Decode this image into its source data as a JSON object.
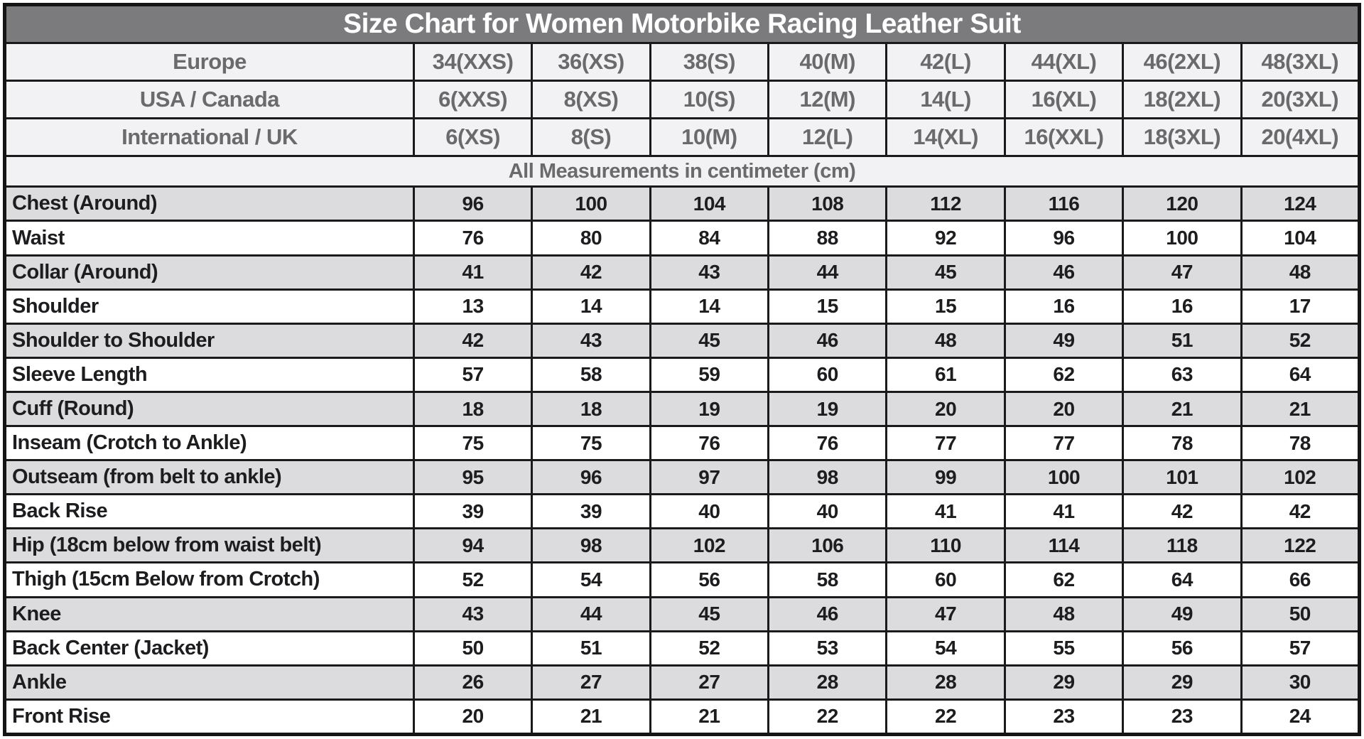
{
  "title": "Size Chart for Women Motorbike Racing Leather Suit",
  "units_note": "All Measurements in centimeter (cm)",
  "colors": {
    "title_bar_bg": "#7b7b7e",
    "title_text": "#ffffff",
    "size_row_bg": "#f2f2f4",
    "size_row_text": "#6a6a6d",
    "measurement_shaded_bg": "#dcdcde",
    "measurement_plain_bg": "#ffffff",
    "measurement_text": "#1d1d1f",
    "grid_border": "#1a1a1a"
  },
  "chart_data": {
    "type": "table",
    "title": "Size Chart for Women Motorbike Racing Leather Suit",
    "units": "All Measurements in centimeter (cm)",
    "size_conversion_rows": [
      {
        "label": "Europe",
        "values": [
          "34(XXS)",
          "36(XS)",
          "38(S)",
          "40(M)",
          "42(L)",
          "44(XL)",
          "46(2XL)",
          "48(3XL)"
        ]
      },
      {
        "label": "USA / Canada",
        "values": [
          "6(XXS)",
          "8(XS)",
          "10(S)",
          "12(M)",
          "14(L)",
          "16(XL)",
          "18(2XL)",
          "20(3XL)"
        ]
      },
      {
        "label": "International / UK",
        "values": [
          "6(XS)",
          "8(S)",
          "10(M)",
          "12(L)",
          "14(XL)",
          "16(XXL)",
          "18(3XL)",
          "20(4XL)"
        ]
      }
    ],
    "measurement_rows": [
      {
        "label": "Chest (Around)",
        "values": [
          96,
          100,
          104,
          108,
          112,
          116,
          120,
          124
        ]
      },
      {
        "label": "Waist",
        "values": [
          76,
          80,
          84,
          88,
          92,
          96,
          100,
          104
        ]
      },
      {
        "label": "Collar (Around)",
        "values": [
          41,
          42,
          43,
          44,
          45,
          46,
          47,
          48
        ]
      },
      {
        "label": "Shoulder",
        "values": [
          13,
          14,
          14,
          15,
          15,
          16,
          16,
          17
        ]
      },
      {
        "label": "Shoulder to Shoulder",
        "values": [
          42,
          43,
          45,
          46,
          48,
          49,
          51,
          52
        ]
      },
      {
        "label": "Sleeve Length",
        "values": [
          57,
          58,
          59,
          60,
          61,
          62,
          63,
          64
        ]
      },
      {
        "label": "Cuff (Round)",
        "values": [
          18,
          18,
          19,
          19,
          20,
          20,
          21,
          21
        ]
      },
      {
        "label": "Inseam (Crotch to Ankle)",
        "values": [
          75,
          75,
          76,
          76,
          77,
          77,
          78,
          78
        ]
      },
      {
        "label": "Outseam (from belt to ankle)",
        "values": [
          95,
          96,
          97,
          98,
          99,
          100,
          101,
          102
        ]
      },
      {
        "label": "Back Rise",
        "values": [
          39,
          39,
          40,
          40,
          41,
          41,
          42,
          42
        ]
      },
      {
        "label": "Hip (18cm below from waist belt)",
        "values": [
          94,
          98,
          102,
          106,
          110,
          114,
          118,
          122
        ]
      },
      {
        "label": "Thigh (15cm Below from Crotch)",
        "values": [
          52,
          54,
          56,
          58,
          60,
          62,
          64,
          66
        ]
      },
      {
        "label": "Knee",
        "values": [
          43,
          44,
          45,
          46,
          47,
          48,
          49,
          50
        ]
      },
      {
        "label": "Back Center (Jacket)",
        "values": [
          50,
          51,
          52,
          53,
          54,
          55,
          56,
          57
        ]
      },
      {
        "label": "Ankle",
        "values": [
          26,
          27,
          27,
          28,
          28,
          29,
          29,
          30
        ]
      },
      {
        "label": "Front Rise",
        "values": [
          20,
          21,
          21,
          22,
          22,
          23,
          23,
          24
        ]
      }
    ]
  }
}
